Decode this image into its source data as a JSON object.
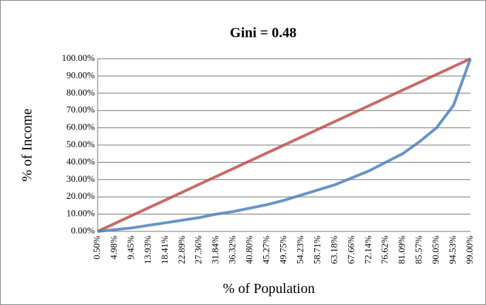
{
  "chart_data": {
    "type": "line",
    "title": "Gini = 0.48",
    "x_label": "% of Population",
    "y_label": "% of Income",
    "categories": [
      "0.50%",
      "4.98%",
      "9.45%",
      "13.93%",
      "18.41%",
      "22.89%",
      "27.36%",
      "31.84%",
      "36.32%",
      "40.80%",
      "45.27%",
      "49.75%",
      "54.23%",
      "58.71%",
      "63.18%",
      "67.66%",
      "72.14%",
      "76.62%",
      "81.09%",
      "85.57%",
      "90.05%",
      "94.53%",
      "99.00%"
    ],
    "series": [
      {
        "color": "#c0504d",
        "values": [
          0,
          4.55,
          9.09,
          13.64,
          18.18,
          22.73,
          27.27,
          31.82,
          36.36,
          40.91,
          45.45,
          50,
          54.55,
          59.09,
          63.64,
          68.18,
          72.73,
          77.27,
          81.82,
          86.36,
          90.91,
          95.45,
          100
        ]
      },
      {
        "color": "#4f81bd",
        "values": [
          0,
          1,
          2,
          3.5,
          5,
          6.5,
          8,
          10,
          11.5,
          13.5,
          15.5,
          18,
          21,
          24,
          27,
          31,
          35,
          40,
          45,
          52,
          60,
          73,
          100
        ]
      }
    ],
    "ylim": [
      0,
      100
    ],
    "yticks": [
      {
        "value": 0,
        "label": "0.00%"
      },
      {
        "value": 10,
        "label": "10.00%"
      },
      {
        "value": 20,
        "label": "20.00%"
      },
      {
        "value": 30,
        "label": "30.00%"
      },
      {
        "value": 40,
        "label": "40.00%"
      },
      {
        "value": 50,
        "label": "50.00%"
      },
      {
        "value": 60,
        "label": "60.00%"
      },
      {
        "value": 70,
        "label": "70.00%"
      },
      {
        "value": 80,
        "label": "80.00%"
      },
      {
        "value": 90,
        "label": "90.00%"
      },
      {
        "value": 100,
        "label": "100.00%"
      }
    ],
    "grid": true
  }
}
